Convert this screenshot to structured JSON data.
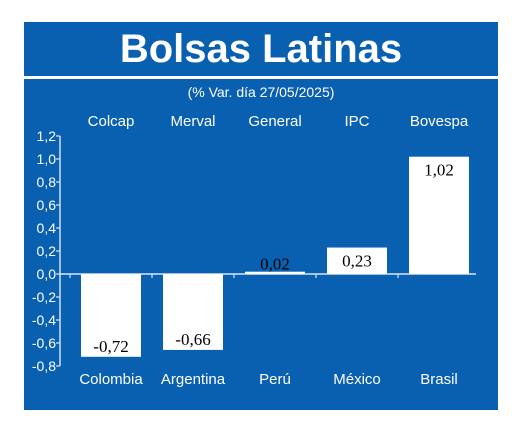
{
  "title": "Bolsas Latinas",
  "subtitle": "(% Var. día 27/05/2025)",
  "colors": {
    "background": "#0a60b0",
    "bar": "#ffffff",
    "text": "#ffffff",
    "value_text": "#000000"
  },
  "chart_data": {
    "type": "bar",
    "title": "Bolsas Latinas",
    "subtitle": "(% Var. día 27/05/2025)",
    "categories": [
      "Colcap",
      "Merval",
      "General",
      "IPC",
      "Bovespa"
    ],
    "countries": [
      "Colombia",
      "Argentina",
      "Perú",
      "México",
      "Brasil"
    ],
    "values": [
      -0.72,
      -0.66,
      0.02,
      0.23,
      1.02
    ],
    "value_labels": [
      "-0,72",
      "-0,66",
      "0,02",
      "0,23",
      "1,02"
    ],
    "y_ticks": [
      "1,2",
      "1,0",
      "0,8",
      "0,6",
      "0,4",
      "0,2",
      "0,0",
      "-0,2",
      "-0,4",
      "-0,6",
      "-0,8"
    ],
    "ylim": [
      -0.8,
      1.2
    ],
    "xlabel": "",
    "ylabel": "",
    "grid": false
  }
}
